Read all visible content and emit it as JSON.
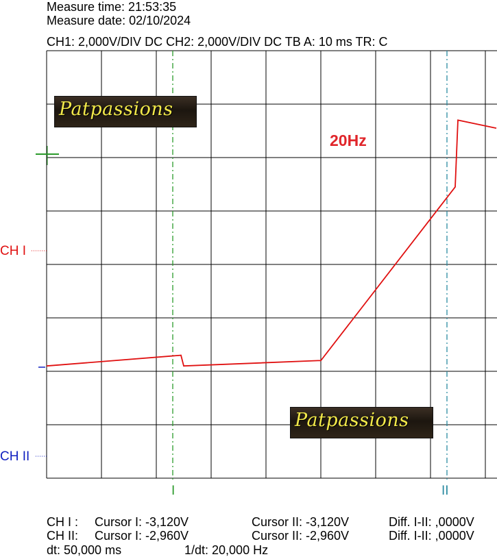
{
  "header": {
    "measure_time": "Measure time: 21:53:35",
    "measure_date": "Measure date: 02/10/2024",
    "settings": "CH1: 2,000V/DIV DC  CH2: 2,000V/DIV DC   TB A: 10 ms   TR: C"
  },
  "channel_labels": {
    "ch1": "CH I",
    "ch2": "CH II"
  },
  "cursor_labels": {
    "c1": "I",
    "c2": "II"
  },
  "watermark_text": "Patpassions",
  "annotation": "20Hz",
  "footer": {
    "ch1": {
      "label": "CH I :",
      "cursor1": "Cursor I: -3,120V",
      "cursor2": "Cursor II: -3,120V",
      "diff": "Diff. I-II: ,0000V"
    },
    "ch2": {
      "label": "CH II:",
      "cursor1": "Cursor I: -2,960V",
      "cursor2": "Cursor II: -2,960V",
      "diff": "Diff. I-II: ,0000V"
    },
    "dt": "dt: 50,000 ms",
    "inv_dt": "1/dt: 20,000 Hz"
  },
  "colors": {
    "ch1": "#e01010",
    "ch2": "#1020c0",
    "cursor1": "#2a9a2a",
    "cursor2": "#2a8aa0",
    "grid": "#000000"
  },
  "chart_data": {
    "type": "line",
    "x_unit": "ms",
    "y_unit": "div",
    "divisions": {
      "x": 10,
      "y": 8
    },
    "time_per_div_ms": 10,
    "volts_per_div": 2.0,
    "cursors_ms": [
      23,
      73
    ],
    "series": [
      {
        "name": "CH I",
        "color": "#e01010",
        "x": [
          0,
          24.5,
          25,
          49.5,
          50,
          74.5,
          75,
          82
        ],
        "y": [
          2.1,
          2.3,
          2.1,
          2.2,
          2.2,
          5.45,
          6.7,
          6.55
        ]
      }
    ]
  }
}
